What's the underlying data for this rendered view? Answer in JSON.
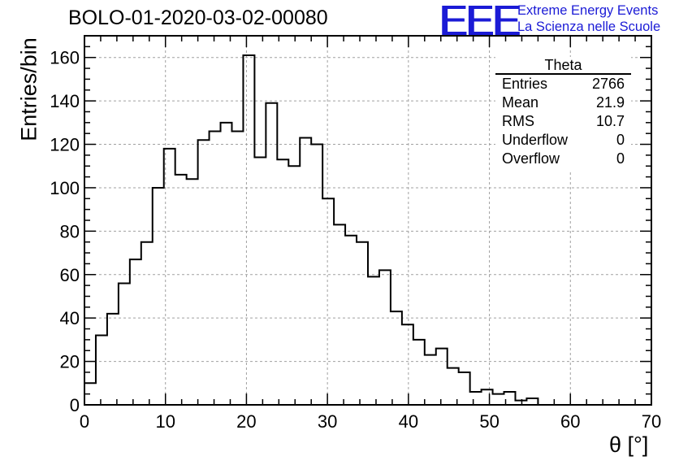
{
  "title": "BOLO-01-2020-03-02-00080",
  "logo": {
    "mark": "EEE",
    "line1": "Extreme Energy Events",
    "line2": "La Scienza nelle Scuole",
    "color": "#1b1bd6"
  },
  "stats": {
    "title": "Theta",
    "rows": [
      {
        "label": "Entries",
        "value": "2766"
      },
      {
        "label": "Mean",
        "value": "21.9"
      },
      {
        "label": "RMS",
        "value": "10.7"
      },
      {
        "label": "Underflow",
        "value": "0"
      },
      {
        "label": "Overflow",
        "value": "0"
      }
    ]
  },
  "chart_data": {
    "type": "histogram",
    "title": "BOLO-01-2020-03-02-00080",
    "xlabel": "θ [°]",
    "ylabel": "Entries/bin",
    "xlim": [
      0,
      70
    ],
    "ylim": [
      0,
      170
    ],
    "bin_width": 1.4,
    "bin_start": 0,
    "values": [
      10,
      32,
      42,
      56,
      67,
      75,
      100,
      118,
      106,
      104,
      122,
      126,
      130,
      126,
      161,
      114,
      139,
      113,
      110,
      123,
      120,
      95,
      83,
      78,
      75,
      59,
      62,
      43,
      37,
      30,
      23,
      26,
      17,
      15,
      6,
      7,
      5,
      6,
      2,
      3,
      0,
      0,
      0,
      0,
      0,
      0,
      0,
      0,
      0,
      0
    ],
    "x_ticks": [
      0,
      10,
      20,
      30,
      40,
      50,
      60,
      70
    ],
    "y_ticks": [
      0,
      20,
      40,
      60,
      80,
      100,
      120,
      140,
      160
    ],
    "grid": true,
    "line_color": "#000000"
  }
}
